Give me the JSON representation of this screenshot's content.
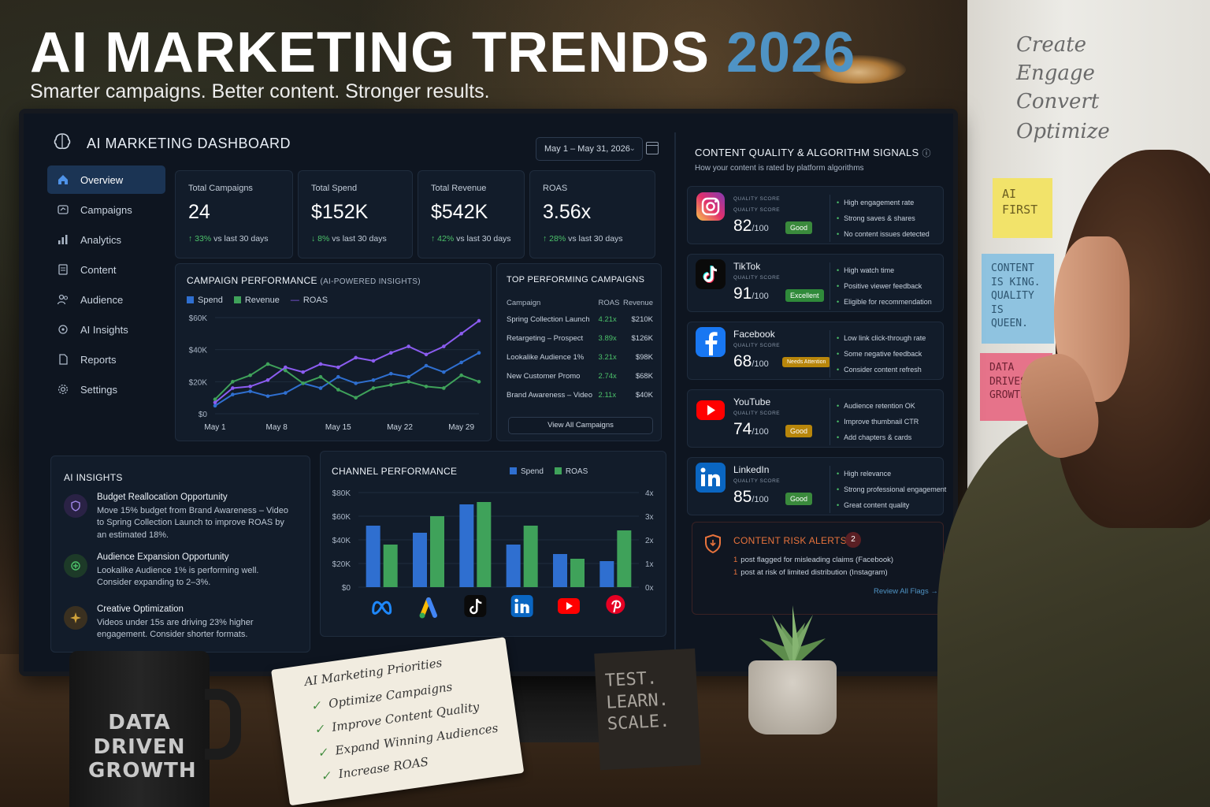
{
  "headline": {
    "title": "AI MARKETING TRENDS",
    "year": "2026",
    "subtitle": "Smarter campaigns. Better content. Stronger results."
  },
  "whiteboard": {
    "lines": [
      "Create",
      "Engage",
      "Convert",
      "Optimize"
    ]
  },
  "sticky_notes": [
    "AI FIRST",
    "CONTENT IS KING. QUALITY IS QUEEN.",
    "DATA DRIVES GROWTH"
  ],
  "dashboard": {
    "title": "AI MARKETING DASHBOARD",
    "date_range": "May 1 – May 31, 2026",
    "nav": [
      {
        "label": "Overview",
        "icon": "home-icon",
        "active": true
      },
      {
        "label": "Campaigns",
        "icon": "campaigns-icon"
      },
      {
        "label": "Analytics",
        "icon": "analytics-icon"
      },
      {
        "label": "Content",
        "icon": "content-icon"
      },
      {
        "label": "Audience",
        "icon": "audience-icon"
      },
      {
        "label": "AI Insights",
        "icon": "ai-insights-icon"
      },
      {
        "label": "Reports",
        "icon": "reports-icon"
      },
      {
        "label": "Settings",
        "icon": "gear-icon"
      }
    ],
    "kpis": [
      {
        "label": "Total Campaigns",
        "value": "24",
        "pct": "33%",
        "delta_text": "vs last 30 days",
        "dir": "up"
      },
      {
        "label": "Total Spend",
        "value": "$152K",
        "pct": "8%",
        "delta_text": "vs last 30 days",
        "dir": "down"
      },
      {
        "label": "Total Revenue",
        "value": "$542K",
        "pct": "42%",
        "delta_text": "vs last 30 days",
        "dir": "up"
      },
      {
        "label": "ROAS",
        "value": "3.56x",
        "pct": "28%",
        "delta_text": "vs last 30 days",
        "dir": "up"
      }
    ],
    "campaign_performance": {
      "title": "CAMPAIGN PERFORMANCE",
      "subtitle": "(AI-POWERED INSIGHTS)"
    },
    "top_campaigns": {
      "title": "TOP PERFORMING CAMPAIGNS",
      "headers": [
        "Campaign",
        "ROAS",
        "Revenue"
      ],
      "rows": [
        [
          "Spring Collection Launch",
          "4.21x",
          "$210K"
        ],
        [
          "Retargeting – Prospect",
          "3.89x",
          "$126K"
        ],
        [
          "Lookalike Audience 1%",
          "3.21x",
          "$98K"
        ],
        [
          "New Customer Promo",
          "2.74x",
          "$68K"
        ],
        [
          "Brand Awareness – Video",
          "2.11x",
          "$40K"
        ]
      ],
      "view_all": "View All Campaigns"
    },
    "ai_insights": {
      "title": "AI INSIGHTS",
      "items": [
        {
          "title": "Budget Reallocation Opportunity",
          "desc": "Move 15% budget from Brand Awareness – Video to Spring Collection Launch to improve ROAS by an estimated 18%.",
          "icon": "shield-icon",
          "color": "#7b5cc4"
        },
        {
          "title": "Audience Expansion Opportunity",
          "desc": "Lookalike Audience 1% is performing well. Consider expanding to 2–3%.",
          "icon": "expand-icon",
          "color": "#3fa25a"
        },
        {
          "title": "Creative Optimization",
          "desc": "Videos under 15s are driving 23% higher engagement. Consider shorter formats.",
          "icon": "sparkle-icon",
          "color": "#d0a23a"
        }
      ]
    },
    "channel_performance": {
      "title": "CHANNEL PERFORMANCE"
    },
    "quality": {
      "title": "CONTENT QUALITY & ALGORITHM SIGNALS",
      "subtitle": "How your content is rated by platform algorithms",
      "label": "QUALITY SCORE",
      "denominator": "/100",
      "platforms": [
        {
          "name": "",
          "score": "82",
          "badge": "Good",
          "badge_color": "#3a8a3c",
          "icon": "instagram-icon",
          "signals": [
            "High engagement rate",
            "Strong saves & shares",
            "No content issues detected"
          ]
        },
        {
          "name": "TikTok",
          "score": "91",
          "badge": "Excellent",
          "badge_color": "#2f8a3a",
          "icon": "tiktok-icon",
          "signals": [
            "High watch time",
            "Positive viewer feedback",
            "Eligible for recommendation"
          ]
        },
        {
          "name": "Facebook",
          "score": "68",
          "badge": "Needs Attention",
          "badge_color": "#b8860b",
          "icon": "facebook-icon",
          "signals": [
            "Low link click-through rate",
            "Some negative feedback",
            "Consider content refresh"
          ]
        },
        {
          "name": "YouTube",
          "score": "74",
          "badge": "Good",
          "badge_color": "#b8860b",
          "icon": "youtube-icon",
          "signals": [
            "Audience retention OK",
            "Improve thumbnail CTR",
            "Add chapters & cards"
          ]
        },
        {
          "name": "LinkedIn",
          "score": "85",
          "badge": "Good",
          "badge_color": "#3a8a3c",
          "icon": "linkedin-icon",
          "signals": [
            "High relevance",
            "Strong professional engagement",
            "Great content quality"
          ]
        }
      ]
    },
    "risk_alerts": {
      "title": "CONTENT RISK ALERTS",
      "count": "2",
      "lines": [
        {
          "n": "1",
          "text": "post flagged for misleading claims (Facebook)"
        },
        {
          "n": "1",
          "text": "post at risk of limited distribution (Instagram)"
        }
      ],
      "review": "Review All Flags →"
    }
  },
  "chart_data": [
    {
      "type": "line",
      "title": "CAMPAIGN PERFORMANCE",
      "x_ticks": [
        "May 1",
        "May 8",
        "May 15",
        "May 22",
        "May 29"
      ],
      "y_ticks": [
        "$0",
        "$20K",
        "$40K",
        "$60K"
      ],
      "ylim": [
        0,
        60000
      ],
      "x": [
        1,
        3,
        5,
        7,
        9,
        11,
        13,
        15,
        17,
        19,
        21,
        23,
        25,
        27,
        29,
        31
      ],
      "series": [
        {
          "name": "Spend",
          "color": "#2f6fd0",
          "values": [
            5000,
            12000,
            14000,
            11000,
            13000,
            19000,
            16000,
            23000,
            19000,
            21000,
            25000,
            23000,
            30000,
            26000,
            32000,
            38000
          ]
        },
        {
          "name": "Revenue",
          "color": "#3fa25a",
          "values": [
            9000,
            20000,
            24000,
            31000,
            27000,
            19000,
            23000,
            15000,
            10000,
            16000,
            18000,
            20000,
            17000,
            16000,
            24000,
            20000
          ]
        },
        {
          "name": "ROAS",
          "color": "#8b5cf0",
          "values": [
            7000,
            16000,
            17000,
            21000,
            29000,
            26000,
            31000,
            29000,
            35000,
            33000,
            38000,
            42000,
            37000,
            42000,
            50000,
            58000
          ]
        }
      ]
    },
    {
      "type": "bar",
      "title": "CHANNEL PERFORMANCE",
      "categories": [
        "Meta",
        "Google Ads",
        "TikTok",
        "LinkedIn",
        "YouTube",
        "Pinterest"
      ],
      "category_icons": [
        "meta-icon",
        "google-ads-icon",
        "tiktok-icon",
        "linkedin-icon",
        "youtube-icon",
        "pinterest-icon"
      ],
      "y_ticks_left": [
        "$0",
        "$20K",
        "$40K",
        "$60K",
        "$80K"
      ],
      "y_ticks_right": [
        "0x",
        "1x",
        "2x",
        "3x",
        "4x"
      ],
      "ylim_left": [
        0,
        80000
      ],
      "ylim_right": [
        0,
        4
      ],
      "series": [
        {
          "name": "Spend",
          "color": "#2f6fd0",
          "axis": "left",
          "values": [
            52000,
            46000,
            70000,
            36000,
            28000,
            22000
          ]
        },
        {
          "name": "ROAS",
          "color": "#3fa25a",
          "axis": "right",
          "values": [
            1.8,
            3.0,
            3.6,
            2.6,
            1.2,
            2.4
          ]
        }
      ]
    }
  ],
  "desk": {
    "mug": "DATA DRIVEN GROWTH",
    "notebook_title": "AI Marketing Priorities",
    "notebook_items": [
      "Optimize Campaigns",
      "Improve Content Quality",
      "Expand Winning Audiences",
      "Increase ROAS"
    ],
    "card": "TEST. LEARN. SCALE."
  }
}
